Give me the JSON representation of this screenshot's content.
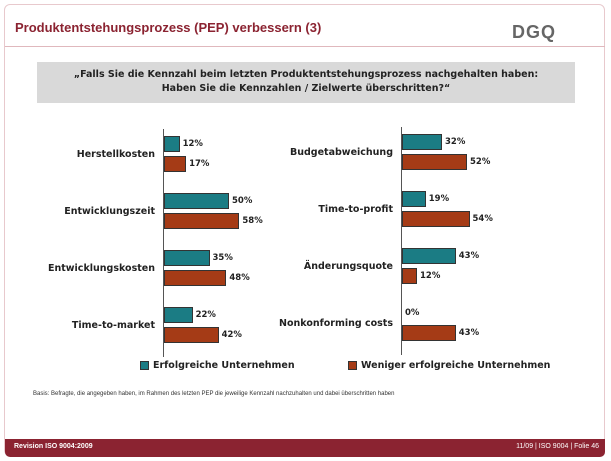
{
  "header": {
    "title": "Produktentstehungsprozess (PEP) verbessern (3)",
    "logo": "DGQ"
  },
  "question": [
    "„Falls Sie die Kennzahl beim letzten Produktentstehungsprozess nachgehalten haben:",
    "Haben Sie die Kennzahlen / Zielwerte überschritten?“"
  ],
  "chart_data": [
    {
      "type": "hbar",
      "categories": [
        "Herstellkosten",
        "Entwicklungszeit",
        "Entwicklungskosten",
        "Time-to-market"
      ],
      "series": [
        {
          "name": "Erfolgreiche Unternehmen",
          "color": "#1b7c84",
          "values": [
            12,
            50,
            35,
            22
          ],
          "value_labels": [
            "12%",
            "50%",
            "35%",
            "22%"
          ]
        },
        {
          "name": "Weniger erfolgreiche Unternehmen",
          "color": "#a53b16",
          "values": [
            17,
            58,
            48,
            42
          ],
          "value_labels": [
            "17%",
            "58%",
            "48%",
            "42%"
          ]
        }
      ]
    },
    {
      "type": "hbar",
      "categories": [
        "Budgetabweichung",
        "Time-to-profit",
        "Änderungsquote",
        "Nonkonforming costs"
      ],
      "series": [
        {
          "color": "#1b7c84",
          "values": [
            32,
            19,
            43,
            0
          ],
          "value_labels": [
            "32%",
            "19%",
            "43%",
            "0%"
          ]
        },
        {
          "color": "#a53b16",
          "values": [
            52,
            54,
            12,
            43
          ],
          "value_labels": [
            "52%",
            "54%",
            "12%",
            "43%"
          ]
        }
      ]
    }
  ],
  "note": "Basis: Befragte, die angegeben haben, im Rahmen des letzten PEP die jeweilige Kennzahl nachzuhalten und dabei überschritten haben",
  "footer": {
    "left": "Revision ISO 9004:2009",
    "right": "11/09 | ISO 9004 | Folie 46"
  }
}
